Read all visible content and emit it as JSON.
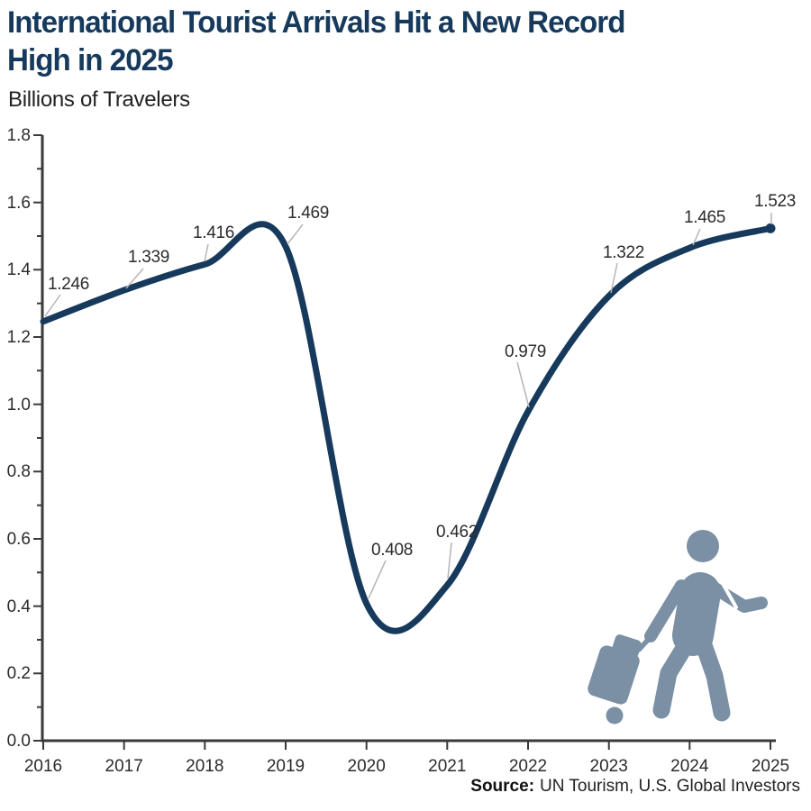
{
  "header": {
    "title": "International Tourist Arrivals Hit a New Record\nHigh in 2025",
    "subtitle": "Billions of Travelers"
  },
  "footer": {
    "source_label": "Source:",
    "source_text": "UN Tourism, U.S. Global Investors"
  },
  "colors": {
    "navy": "#16395c",
    "label": "#2b2b2b",
    "axis": "#3a3a3a",
    "leader": "#b5b5b5",
    "icon": "#7b90a4"
  },
  "icon": {
    "name": "traveler-with-rolling-luggage-icon"
  },
  "chart_data": {
    "type": "line",
    "title": "International Tourist Arrivals Hit a New Record High in 2025",
    "ylabel": "Billions of Travelers",
    "xlabel": "",
    "x": [
      2016,
      2017,
      2018,
      2019,
      2020,
      2021,
      2022,
      2023,
      2024,
      2025
    ],
    "values": [
      1.246,
      1.339,
      1.416,
      1.469,
      0.408,
      0.462,
      0.979,
      1.322,
      1.465,
      1.523
    ],
    "point_labels": [
      "1.246",
      "1.339",
      "1.416",
      "1.469",
      "0.408",
      "0.462",
      "0.979",
      "1.322",
      "1.465",
      "1.523"
    ],
    "x_tick_labels": [
      "2016",
      "2017",
      "2018",
      "2019",
      "2020",
      "2021",
      "2022",
      "2023",
      "2024",
      "2025"
    ],
    "y_tick_labels": [
      "1.8",
      "1.6",
      "1.4",
      "1.2",
      "1.0",
      "0.8",
      "0.6",
      "0.4",
      "0.2",
      "0.0"
    ],
    "ylim": [
      0,
      1.8
    ],
    "y_minor_tick_step": 0.1,
    "grid": false,
    "legend": "none",
    "smoothing": "catmull-rom",
    "line_color": "#16395c"
  }
}
